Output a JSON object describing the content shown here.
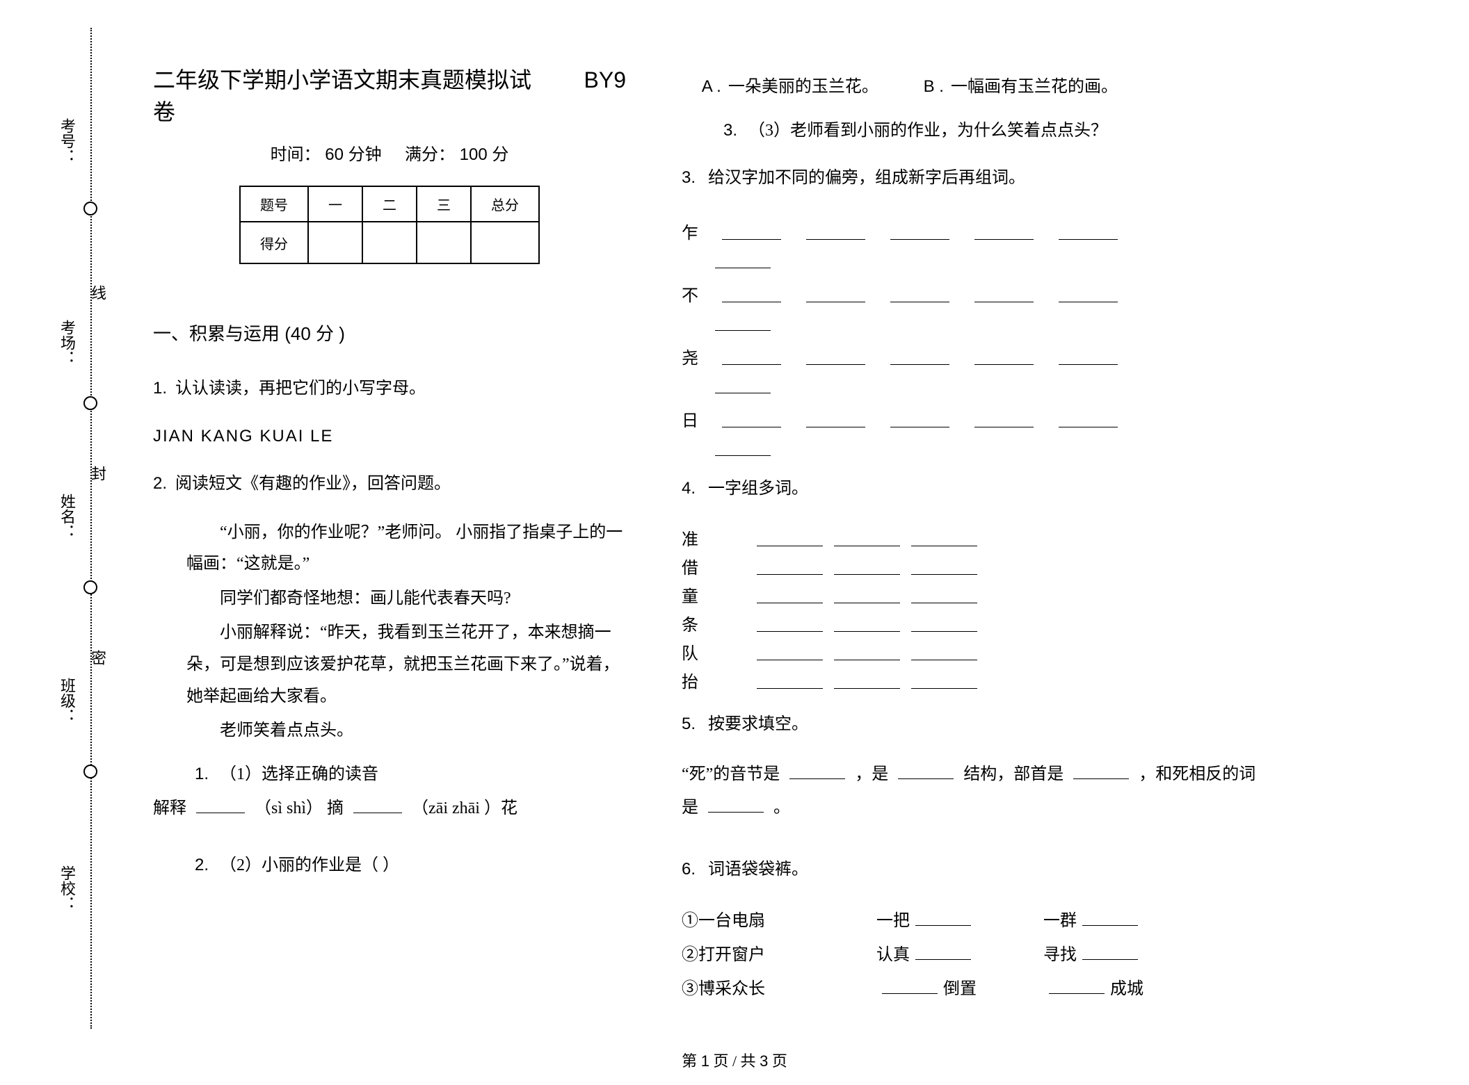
{
  "binding": {
    "labels": [
      "考号：",
      "考场：",
      "姓名：",
      "班级：",
      "学校："
    ],
    "seal_chars": [
      "线",
      "封",
      "密"
    ]
  },
  "header": {
    "title": "二年级下学期小学语文期末真题模拟试卷",
    "code": "BY9",
    "time_label": "时间：",
    "time_value": "60 分钟",
    "full_label": "满分：",
    "full_value": "100 分"
  },
  "score_table": {
    "headers": [
      "题号",
      "一",
      "二",
      "三",
      "总分"
    ],
    "row2_first": "得分"
  },
  "section1": {
    "heading": "一、积累与运用   (40 分 )"
  },
  "q1": {
    "num": "1.",
    "text": "认认读读，再把它们的小写字母。",
    "letters": "JIAN        KANG        KUAI        LE"
  },
  "q2": {
    "num": "2.",
    "text": "阅读短文《有趣的作业》，回答问题。",
    "p1": "“小丽，你的作业呢？”老师问。  小丽指了指桌子上的一幅画：“这就是。”",
    "p2": "同学们都奇怪地想：画儿能代表春天吗?",
    "p3": "小丽解释说：“昨天，我看到玉兰花开了，本来想摘一朵，可是想到应该爱护花草，就把玉兰花画下来了。”说着，她举起画给大家看。",
    "p4": "老师笑着点点头。",
    "sub1_num": "1.",
    "sub1_text": "（1）选择正确的读音",
    "sub1_line_a": "解释",
    "sub1_line_b": "（sì        shì）  摘",
    "sub1_line_c": "（zāi        zhāi ）花",
    "sub2_num": "2.",
    "sub2_text": "（2）小丽的作业是（           ）",
    "optA_label": "A .",
    "optA_text": "一朵美丽的玉兰花。",
    "optB_label": "B .",
    "optB_text": "一幅画有玉兰花的画。",
    "sub3_num": "3.",
    "sub3_text": "（3）老师看到小丽的作业，为什么笑着点点头？"
  },
  "q3": {
    "num": "3.",
    "text": "给汉字加不同的偏旁，组成新字后再组词。",
    "radicals": [
      "乍",
      "不",
      "尧",
      "日"
    ]
  },
  "q4": {
    "num": "4.",
    "text": "一字组多词。",
    "chars": [
      "准",
      "借",
      "童",
      "条",
      "队",
      "抬"
    ]
  },
  "q5": {
    "num": "5.",
    "text": "按要求填空。",
    "body_a": "“死”的音节是",
    "body_b": "，是",
    "body_c": "结构，部首是",
    "body_d": "，和死相反的词是",
    "body_e": "。"
  },
  "q6": {
    "num": "6.",
    "text": "词语袋袋裤。",
    "r1a": "①一台电扇",
    "r1b": "一把",
    "r1c": "一群",
    "r2a": "②打开窗户",
    "r2b": "认真",
    "r2c": "寻找",
    "r3a": "③博采众长",
    "r3b": "倒置",
    "r3c": "成城"
  },
  "footer": {
    "text_a": "第 ",
    "page_cur": "1",
    "text_b": " 页     /   共 ",
    "page_total": "3",
    "text_c": " 页"
  }
}
